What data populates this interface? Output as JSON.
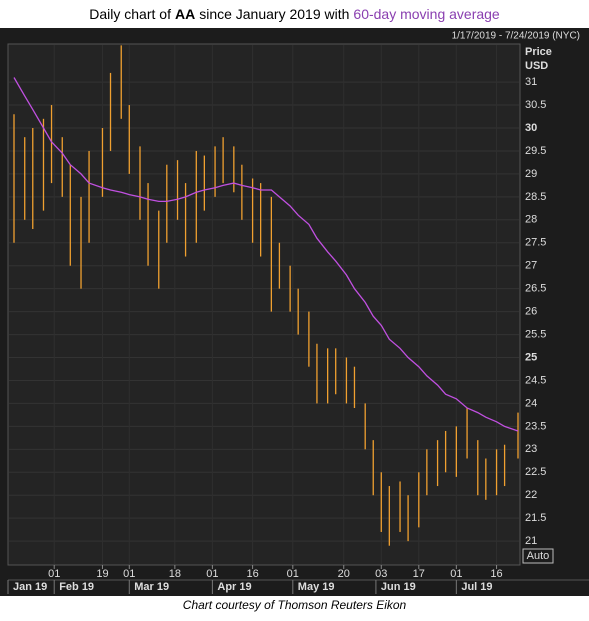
{
  "chart_data": {
    "type": "ohlc",
    "title": [
      "Daily chart of",
      "AA",
      "since January 2019 with",
      "60-day moving average"
    ],
    "date_range": "1/17/2019 - 7/24/2019 (NYC)",
    "y_label": [
      "Price",
      "USD"
    ],
    "scale_mode": "Auto",
    "footer": "Chart courtesy of Thomson Reuters Eikon",
    "x": [
      "2019-01-17",
      "2019-01-21",
      "2019-01-24",
      "2019-01-28",
      "2019-01-31",
      "2019-02-04",
      "2019-02-07",
      "2019-02-11",
      "2019-02-14",
      "2019-02-19",
      "2019-02-22",
      "2019-02-26",
      "2019-03-01",
      "2019-03-05",
      "2019-03-08",
      "2019-03-12",
      "2019-03-15",
      "2019-03-19",
      "2019-03-22",
      "2019-03-26",
      "2019-03-29",
      "2019-04-02",
      "2019-04-05",
      "2019-04-09",
      "2019-04-12",
      "2019-04-16",
      "2019-04-19",
      "2019-04-23",
      "2019-04-26",
      "2019-04-30",
      "2019-05-03",
      "2019-05-07",
      "2019-05-10",
      "2019-05-14",
      "2019-05-17",
      "2019-05-21",
      "2019-05-24",
      "2019-05-28",
      "2019-05-31",
      "2019-06-03",
      "2019-06-06",
      "2019-06-10",
      "2019-06-13",
      "2019-06-17",
      "2019-06-20",
      "2019-06-24",
      "2019-06-27",
      "2019-07-01",
      "2019-07-05",
      "2019-07-09",
      "2019-07-12",
      "2019-07-16",
      "2019-07-19",
      "2019-07-24"
    ],
    "series": [
      {
        "name": "AA",
        "color": "#f0a030",
        "high": [
          30.3,
          29.8,
          30,
          30.2,
          30.5,
          29.8,
          29.2,
          28.5,
          29.5,
          30,
          31.2,
          31.8,
          30.5,
          29.6,
          28.8,
          28.2,
          29.2,
          29.3,
          28.8,
          29.5,
          29.4,
          29.6,
          29.8,
          29.6,
          29.2,
          28.9,
          28.8,
          28.5,
          27.5,
          27,
          26.5,
          26,
          25.3,
          25.2,
          25.2,
          25,
          24.8,
          24,
          23.2,
          22.5,
          22.2,
          22.3,
          22,
          22.5,
          23,
          23.2,
          23.4,
          23.5,
          23.9,
          23.2,
          22.8,
          23,
          23.1,
          23.8
        ],
        "low": [
          27.5,
          28,
          27.8,
          28.2,
          28.8,
          28.5,
          27,
          26.5,
          27.5,
          28.5,
          29.5,
          30.2,
          29,
          28,
          27,
          26.5,
          27.5,
          28,
          27.2,
          27.5,
          28.2,
          28.5,
          28.8,
          28.6,
          28,
          27.5,
          27.2,
          26,
          26.5,
          26,
          25.5,
          24.8,
          24,
          24,
          24.2,
          24,
          23.9,
          23,
          22,
          21.2,
          20.9,
          21.2,
          21,
          21.3,
          22,
          22.2,
          22.5,
          22.4,
          22.8,
          22,
          21.9,
          22,
          22.2,
          22.8
        ]
      },
      {
        "name": "60-day moving average",
        "color": "#c050e0",
        "values": [
          31.1,
          30.7,
          30.4,
          30,
          29.7,
          29.45,
          29.2,
          29,
          28.8,
          28.7,
          28.65,
          28.6,
          28.55,
          28.5,
          28.45,
          28.4,
          28.4,
          28.45,
          28.5,
          28.6,
          28.65,
          28.7,
          28.75,
          28.8,
          28.75,
          28.7,
          28.65,
          28.65,
          28.5,
          28.3,
          28.1,
          27.9,
          27.6,
          27.3,
          27.1,
          26.8,
          26.5,
          26.2,
          25.9,
          25.7,
          25.4,
          25.2,
          25,
          24.8,
          24.6,
          24.4,
          24.2,
          24.1,
          23.9,
          23.8,
          23.7,
          23.6,
          23.5,
          23.4
        ]
      }
    ],
    "xlim": [
      "2019-01-17",
      "2019-07-24"
    ],
    "xticks": [
      {
        "value": "2019-02-01",
        "label": "01"
      },
      {
        "value": "2019-02-19",
        "label": "19"
      },
      {
        "value": "2019-03-01",
        "label": "01"
      },
      {
        "value": "2019-03-18",
        "label": "18"
      },
      {
        "value": "2019-04-01",
        "label": "01"
      },
      {
        "value": "2019-04-16",
        "label": "16"
      },
      {
        "value": "2019-05-01",
        "label": "01"
      },
      {
        "value": "2019-05-20",
        "label": "20"
      },
      {
        "value": "2019-06-03",
        "label": "03"
      },
      {
        "value": "2019-06-17",
        "label": "17"
      },
      {
        "value": "2019-07-01",
        "label": "01"
      },
      {
        "value": "2019-07-16",
        "label": "16"
      }
    ],
    "month_ticks": [
      {
        "value": "2019-01-01",
        "label": "Jan 19"
      },
      {
        "value": "2019-02-01",
        "label": "Feb 19"
      },
      {
        "value": "2019-03-01",
        "label": "Mar 19"
      },
      {
        "value": "2019-04-01",
        "label": "Apr 19"
      },
      {
        "value": "2019-05-01",
        "label": "May 19"
      },
      {
        "value": "2019-06-01",
        "label": "Jun 19"
      },
      {
        "value": "2019-07-01",
        "label": "Jul 19"
      }
    ],
    "ylim": [
      20.48,
      31.83
    ],
    "yticks": [
      21,
      21.5,
      22,
      22.5,
      23,
      23.5,
      24,
      24.5,
      25,
      25.5,
      26,
      26.5,
      27,
      27.5,
      28,
      28.5,
      29,
      29.5,
      30,
      30.5,
      31
    ],
    "bold_yticks": [
      25,
      30
    ],
    "grid": true
  }
}
